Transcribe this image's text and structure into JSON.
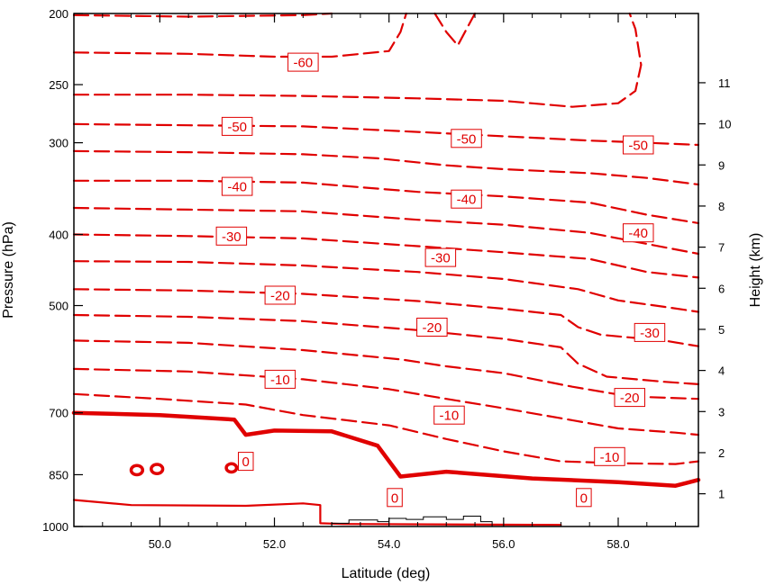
{
  "chart_data": {
    "type": "contour",
    "title": "",
    "xlabel": "Latitude (deg)",
    "ylabel_left": "Pressure (hPa)",
    "ylabel_right": "Height (km)",
    "xlim": [
      48.5,
      59.4
    ],
    "x_ticks": [
      {
        "value": 50,
        "label": "50.0"
      },
      {
        "value": 52,
        "label": "52.0"
      },
      {
        "value": 54,
        "label": "54.0"
      },
      {
        "value": 56,
        "label": "56.0"
      },
      {
        "value": 58,
        "label": "58.0"
      }
    ],
    "left_axis": {
      "scale": "log",
      "ylim_hpa": [
        1000,
        200
      ],
      "ticks": [
        {
          "value": 200,
          "label": "200"
        },
        {
          "value": 250,
          "label": "250"
        },
        {
          "value": 300,
          "label": "300"
        },
        {
          "value": 400,
          "label": "400"
        },
        {
          "value": 500,
          "label": "500"
        },
        {
          "value": 700,
          "label": "700"
        },
        {
          "value": 850,
          "label": "850"
        },
        {
          "value": 1000,
          "label": "1000"
        }
      ]
    },
    "right_axis": {
      "ticks": [
        {
          "value": 1,
          "label": "1"
        },
        {
          "value": 2,
          "label": "2"
        },
        {
          "value": 3,
          "label": "3"
        },
        {
          "value": 4,
          "label": "4"
        },
        {
          "value": 5,
          "label": "5"
        },
        {
          "value": 6,
          "label": "6"
        },
        {
          "value": 7,
          "label": "7"
        },
        {
          "value": 8,
          "label": "8"
        },
        {
          "value": 9,
          "label": "9"
        },
        {
          "value": 10,
          "label": "10"
        },
        {
          "value": 11,
          "label": "11"
        }
      ]
    },
    "line_color": "#e00000",
    "terrain_color": "#000000",
    "contour_lines": [
      {
        "level": -60,
        "style": "dashed",
        "points": [
          [
            48.5,
            201
          ],
          [
            50.5,
            202
          ],
          [
            52.5,
            201
          ],
          [
            53.0,
            200
          ]
        ]
      },
      {
        "level": -60,
        "style": "dashed",
        "points": [
          [
            48.5,
            226
          ],
          [
            50.5,
            227
          ],
          [
            52.0,
            229
          ],
          [
            53.0,
            229
          ],
          [
            54.0,
            225
          ],
          [
            54.2,
            212
          ],
          [
            54.3,
            200
          ]
        ]
      },
      {
        "level": -60,
        "style": "dashed",
        "points": [
          [
            54.8,
            200
          ],
          [
            55.0,
            212
          ],
          [
            55.2,
            221
          ],
          [
            55.5,
            200
          ]
        ]
      },
      {
        "level": -60,
        "style": "dashed",
        "points": [
          [
            48.5,
            258
          ],
          [
            50.5,
            258
          ],
          [
            52.5,
            259
          ],
          [
            54.5,
            261
          ],
          [
            56.0,
            263
          ],
          [
            57.2,
            268
          ],
          [
            58.0,
            265
          ],
          [
            58.3,
            255
          ],
          [
            58.4,
            235
          ],
          [
            58.3,
            210
          ],
          [
            58.2,
            200
          ]
        ]
      },
      {
        "level": -50,
        "style": "dashed",
        "points": [
          [
            48.5,
            283
          ],
          [
            50.5,
            284
          ],
          [
            52.5,
            285
          ],
          [
            54.5,
            290
          ],
          [
            56.0,
            294
          ],
          [
            57.5,
            298
          ],
          [
            58.5,
            300
          ],
          [
            59.4,
            302
          ]
        ]
      },
      {
        "level": -50,
        "style": "dashed",
        "points": [
          [
            48.5,
            308
          ],
          [
            50.5,
            309
          ],
          [
            52.5,
            311
          ],
          [
            53.8,
            315
          ],
          [
            55.0,
            322
          ],
          [
            56.0,
            326
          ],
          [
            57.5,
            330
          ],
          [
            58.5,
            335
          ],
          [
            59.4,
            342
          ]
        ]
      },
      {
        "level": -40,
        "style": "dashed",
        "points": [
          [
            48.5,
            338
          ],
          [
            50.5,
            338
          ],
          [
            52.5,
            340
          ],
          [
            54.5,
            350
          ],
          [
            56.0,
            355
          ],
          [
            57.5,
            362
          ],
          [
            58.5,
            376
          ],
          [
            59.4,
            386
          ]
        ]
      },
      {
        "level": -40,
        "style": "dashed",
        "points": [
          [
            48.5,
            368
          ],
          [
            50.5,
            370
          ],
          [
            52.5,
            372
          ],
          [
            54.5,
            382
          ],
          [
            56.0,
            388
          ],
          [
            57.5,
            398
          ],
          [
            58.5,
            412
          ],
          [
            59.4,
            425
          ]
        ]
      },
      {
        "level": -30,
        "style": "dashed",
        "points": [
          [
            48.5,
            400
          ],
          [
            50.5,
            402
          ],
          [
            52.5,
            405
          ],
          [
            54.5,
            415
          ],
          [
            56.0,
            423
          ],
          [
            57.5,
            432
          ],
          [
            58.5,
            450
          ],
          [
            59.4,
            458
          ]
        ]
      },
      {
        "level": -30,
        "style": "dashed",
        "points": [
          [
            48.5,
            435
          ],
          [
            50.5,
            436
          ],
          [
            52.5,
            441
          ],
          [
            54.5,
            450
          ],
          [
            56.0,
            460
          ],
          [
            57.3,
            475
          ],
          [
            58.0,
            492
          ],
          [
            58.8,
            502
          ],
          [
            59.4,
            510
          ]
        ]
      },
      {
        "level": -20,
        "style": "dashed",
        "points": [
          [
            48.5,
            475
          ],
          [
            50.5,
            477
          ],
          [
            52.5,
            482
          ],
          [
            54.5,
            493
          ],
          [
            56.0,
            505
          ],
          [
            57.0,
            515
          ],
          [
            57.3,
            535
          ],
          [
            57.7,
            548
          ],
          [
            58.8,
            558
          ],
          [
            59.4,
            568
          ]
        ]
      },
      {
        "level": -20,
        "style": "dashed",
        "points": [
          [
            48.5,
            515
          ],
          [
            50.5,
            518
          ],
          [
            52.5,
            525
          ],
          [
            54.5,
            540
          ],
          [
            56.0,
            555
          ],
          [
            57.0,
            570
          ],
          [
            57.3,
            600
          ],
          [
            57.8,
            625
          ],
          [
            58.8,
            635
          ],
          [
            59.4,
            640
          ]
        ]
      },
      {
        "level": -10,
        "style": "dashed",
        "points": [
          [
            48.5,
            558
          ],
          [
            50.5,
            562
          ],
          [
            52.5,
            575
          ],
          [
            54.2,
            592
          ],
          [
            55.0,
            605
          ],
          [
            56.0,
            618
          ],
          [
            57.2,
            645
          ],
          [
            58.2,
            665
          ],
          [
            59.4,
            670
          ]
        ]
      },
      {
        "level": -10,
        "style": "dashed",
        "points": [
          [
            48.5,
            610
          ],
          [
            50.5,
            615
          ],
          [
            52.5,
            630
          ],
          [
            54.0,
            650
          ],
          [
            55.0,
            670
          ],
          [
            56.0,
            690
          ],
          [
            57.0,
            712
          ],
          [
            58.0,
            735
          ],
          [
            59.0,
            745
          ],
          [
            59.4,
            750
          ]
        ]
      },
      {
        "level": -10,
        "style": "dashed",
        "points": [
          [
            48.5,
            660
          ],
          [
            50.0,
            670
          ],
          [
            51.5,
            682
          ],
          [
            52.5,
            705
          ],
          [
            54.0,
            728
          ],
          [
            55.0,
            760
          ],
          [
            56.0,
            790
          ],
          [
            57.0,
            815
          ],
          [
            58.0,
            820
          ],
          [
            59.0,
            822
          ],
          [
            59.4,
            815
          ]
        ]
      },
      {
        "level": 0,
        "style": "thick",
        "points": [
          [
            48.5,
            700
          ],
          [
            50.0,
            705
          ],
          [
            51.3,
            715
          ],
          [
            51.5,
            750
          ],
          [
            52.0,
            740
          ],
          [
            53.0,
            742
          ],
          [
            53.8,
            776
          ],
          [
            54.2,
            855
          ],
          [
            55.0,
            842
          ],
          [
            55.5,
            848
          ],
          [
            56.5,
            860
          ],
          [
            58.0,
            870
          ],
          [
            59.0,
            880
          ],
          [
            59.4,
            864
          ]
        ]
      },
      {
        "level": 0,
        "style": "solid",
        "points": [
          [
            48.5,
            920
          ],
          [
            49.5,
            935
          ],
          [
            51.5,
            937
          ],
          [
            52.5,
            930
          ],
          [
            52.8,
            935
          ],
          [
            52.8,
            990
          ],
          [
            53.2,
            992
          ],
          [
            57.0,
            995
          ]
        ]
      }
    ],
    "small_features": [
      {
        "level": 0,
        "cx": 49.6,
        "cy": 838,
        "r": 0.1
      },
      {
        "level": 0,
        "cx": 49.95,
        "cy": 835,
        "r": 0.1
      },
      {
        "level": 0,
        "cx": 51.25,
        "cy": 832,
        "r": 0.09
      },
      {
        "level": 0,
        "cx": 51.45,
        "cy": 822,
        "r": 0.06
      }
    ],
    "contour_labels": [
      {
        "text": "-60",
        "x": 52.5,
        "y": 233
      },
      {
        "text": "-50",
        "x": 51.35,
        "y": 285
      },
      {
        "text": "-50",
        "x": 55.35,
        "y": 296
      },
      {
        "text": "-50",
        "x": 58.35,
        "y": 302
      },
      {
        "text": "-40",
        "x": 51.35,
        "y": 344
      },
      {
        "text": "-40",
        "x": 55.35,
        "y": 358
      },
      {
        "text": "-40",
        "x": 58.35,
        "y": 398
      },
      {
        "text": "-30",
        "x": 51.25,
        "y": 402
      },
      {
        "text": "-30",
        "x": 54.9,
        "y": 430
      },
      {
        "text": "-30",
        "x": 58.55,
        "y": 544
      },
      {
        "text": "-20",
        "x": 52.1,
        "y": 484
      },
      {
        "text": "-20",
        "x": 54.75,
        "y": 535
      },
      {
        "text": "-20",
        "x": 58.2,
        "y": 667
      },
      {
        "text": "-10",
        "x": 52.1,
        "y": 630
      },
      {
        "text": "-10",
        "x": 55.05,
        "y": 705
      },
      {
        "text": "-10",
        "x": 57.85,
        "y": 803
      },
      {
        "text": "0",
        "x": 51.5,
        "y": 815
      },
      {
        "text": "0",
        "x": 54.1,
        "y": 913
      },
      {
        "text": "0",
        "x": 57.4,
        "y": 913
      }
    ],
    "terrain": [
      [
        52.8,
        1000
      ],
      [
        53.0,
        990
      ],
      [
        53.3,
        980
      ],
      [
        53.8,
        985
      ],
      [
        54.0,
        975
      ],
      [
        54.3,
        978
      ],
      [
        54.6,
        970
      ],
      [
        55.0,
        978
      ],
      [
        55.3,
        968
      ],
      [
        55.6,
        985
      ],
      [
        55.8,
        1000
      ]
    ]
  }
}
